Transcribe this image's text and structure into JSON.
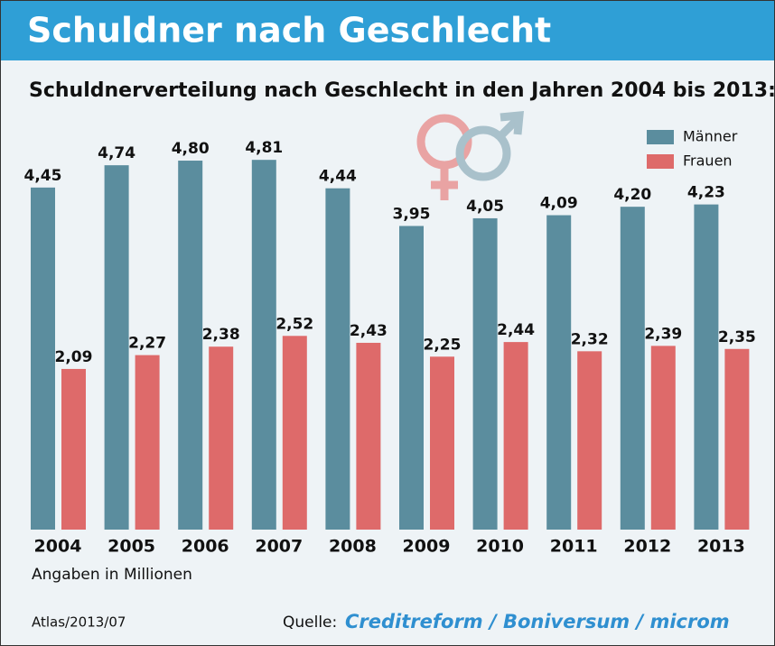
{
  "chart_data": {
    "type": "bar",
    "title": "Schuldner nach Geschlecht",
    "subtitle": "Schuldnerverteilung nach Geschlecht in den Jahren 2004 bis 2013:",
    "categories": [
      "2004",
      "2005",
      "2006",
      "2007",
      "2008",
      "2009",
      "2010",
      "2011",
      "2012",
      "2013"
    ],
    "series": [
      {
        "name": "Männer",
        "color": "#5b8d9e",
        "values": [
          4.45,
          4.74,
          4.8,
          4.81,
          4.44,
          3.95,
          4.05,
          4.09,
          4.2,
          4.23
        ],
        "value_labels": [
          "4,45",
          "4,74",
          "4,80",
          "4,81",
          "4,44",
          "3,95",
          "4,05",
          "4,09",
          "4,20",
          "4,23"
        ]
      },
      {
        "name": "Frauen",
        "color": "#de6a6a",
        "values": [
          2.09,
          2.27,
          2.38,
          2.52,
          2.43,
          2.25,
          2.44,
          2.32,
          2.39,
          2.35
        ],
        "value_labels": [
          "2,09",
          "2,27",
          "2,38",
          "2,52",
          "2,43",
          "2,25",
          "2,44",
          "2,32",
          "2,39",
          "2,35"
        ]
      }
    ],
    "note": "Angaben in Millionen",
    "credit": "Atlas/2013/07",
    "source_label": "Quelle:",
    "source": "Creditreform / Boniversum / microm"
  }
}
